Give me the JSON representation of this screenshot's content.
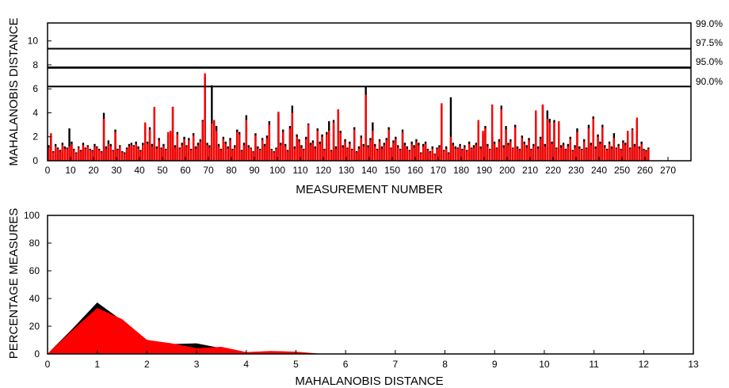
{
  "chart_data": [
    {
      "type": "bar",
      "xlabel": "MEASUREMENT NUMBER",
      "ylabel": "MAHALANOBIS DISTANCE",
      "xlim": [
        0,
        280
      ],
      "ylim": [
        0,
        11.5
      ],
      "xticks": [
        0,
        10,
        20,
        30,
        40,
        50,
        60,
        70,
        80,
        90,
        100,
        110,
        120,
        130,
        140,
        150,
        160,
        170,
        180,
        190,
        200,
        210,
        220,
        230,
        240,
        250,
        260,
        270
      ],
      "yticks": [
        0,
        2,
        4,
        6,
        8,
        10
      ],
      "threshold_lines": [
        {
          "label": "99.0%",
          "value": 9.35
        },
        {
          "label": "97.5%",
          "value": 7.8
        },
        {
          "label": "95.0%",
          "value": 7.75
        },
        {
          "label": "90.0%",
          "value": 6.2
        }
      ],
      "series": [
        {
          "color": "#000000",
          "values": [
            1.3,
            2.1,
            0.8,
            1.4,
            1.1,
            0.9,
            1.5,
            1.2,
            1.1,
            2.7,
            1.6,
            1.0,
            0.7,
            1.2,
            0.9,
            1.5,
            1.1,
            1.3,
            1.0,
            0.9,
            1.4,
            1.2,
            1.0,
            0.8,
            4.0,
            1.2,
            1.7,
            1.4,
            0.9,
            2.6,
            1.0,
            1.3,
            0.8,
            0.7,
            1.1,
            1.4,
            1.5,
            1.3,
            1.6,
            1.2,
            0.9,
            1.5,
            3.1,
            1.6,
            2.8,
            1.4,
            4.4,
            1.2,
            1.9,
            1.1,
            1.4,
            1.0,
            2.2,
            2.4,
            4.5,
            1.3,
            2.4,
            1.1,
            1.5,
            2.0,
            1.3,
            1.9,
            1.0,
            2.3,
            1.2,
            1.5,
            1.8,
            3.4,
            7.0,
            1.5,
            1.3,
            6.3,
            3.3,
            2.9,
            1.4,
            1.0,
            2.0,
            1.6,
            1.2,
            1.9,
            1.0,
            1.3,
            2.6,
            2.4,
            0.9,
            1.5,
            3.8,
            1.3,
            1.1,
            0.8,
            2.3,
            1.2,
            1.0,
            1.9,
            1.4,
            2.1,
            3.3,
            1.0,
            0.8,
            1.1,
            3.9,
            1.5,
            2.6,
            1.4,
            0.9,
            2.9,
            4.6,
            1.2,
            2.2,
            1.8,
            1.3,
            1.0,
            2.0,
            3.1,
            1.5,
            1.7,
            1.2,
            2.7,
            1.6,
            2.2,
            1.0,
            2.4,
            3.3,
            0.9,
            3.4,
            1.2,
            4.2,
            2.5,
            1.3,
            1.8,
            1.1,
            1.6,
            1.0,
            2.8,
            0.8,
            1.2,
            2.1,
            1.4,
            6.2,
            1.3,
            1.9,
            3.2,
            1.4,
            1.0,
            1.8,
            1.2,
            1.5,
            1.9,
            2.8,
            1.1,
            1.7,
            2.0,
            1.3,
            1.0,
            2.6,
            1.5,
            1.2,
            0.9,
            1.6,
            1.3,
            1.8,
            1.5,
            0.7,
            1.4,
            1.6,
            1.0,
            0.8,
            1.2,
            0.6,
            1.1,
            1.3,
            4.6,
            0.9,
            1.2,
            0.7,
            5.3,
            1.5,
            1.2,
            1.1,
            1.4,
            1.0,
            1.3,
            0.9,
            1.6,
            1.1,
            1.3,
            1.5,
            3.2,
            1.2,
            2.3,
            2.9,
            1.4,
            1.0,
            2.0,
            1.6,
            1.1,
            1.8,
            4.6,
            1.3,
            2.9,
            1.5,
            1.8,
            1.1,
            3.0,
            1.2,
            1.0,
            2.1,
            1.6,
            1.3,
            1.9,
            1.0,
            1.4,
            3.8,
            1.2,
            2.0,
            4.6,
            1.4,
            4.2,
            3.5,
            1.6,
            3.4,
            1.1,
            3.1,
            1.3,
            1.5,
            1.0,
            1.4,
            2.0,
            0.9,
            1.3,
            2.7,
            1.2,
            1.0,
            1.8,
            1.1,
            3.0,
            1.5,
            3.7,
            1.2,
            2.2,
            1.6,
            3.0,
            1.3,
            1.0,
            1.6,
            1.2,
            2.3,
            1.1,
            1.4,
            1.0,
            1.7,
            1.5,
            2.3,
            1.1,
            2.7,
            1.4,
            3.4,
            1.2,
            1.6,
            1.0,
            0.9,
            1.1
          ]
        },
        {
          "color": "#ff0000",
          "values": [
            1.1,
            2.3,
            0.7,
            1.2,
            1.0,
            0.8,
            1.3,
            1.0,
            1.0,
            1.2,
            1.4,
            0.9,
            0.6,
            1.1,
            0.8,
            1.3,
            1.0,
            1.2,
            0.9,
            0.8,
            1.2,
            1.1,
            0.9,
            0.7,
            3.5,
            1.0,
            1.4,
            1.2,
            0.8,
            2.4,
            0.9,
            1.2,
            0.7,
            0.6,
            1.0,
            1.2,
            1.3,
            1.2,
            1.4,
            1.0,
            0.8,
            1.3,
            3.2,
            1.4,
            2.6,
            1.2,
            4.5,
            1.0,
            1.7,
            1.0,
            1.2,
            0.9,
            2.4,
            2.5,
            4.5,
            1.1,
            2.2,
            1.0,
            1.3,
            1.8,
            1.2,
            1.7,
            0.9,
            2.1,
            1.0,
            1.3,
            1.6,
            3.3,
            7.3,
            1.3,
            1.1,
            3.1,
            3.4,
            2.5,
            1.2,
            0.9,
            1.8,
            1.4,
            1.0,
            1.7,
            0.9,
            1.1,
            2.4,
            2.2,
            0.8,
            1.3,
            3.4,
            1.1,
            1.0,
            0.7,
            2.1,
            1.0,
            0.9,
            1.7,
            1.2,
            1.9,
            3.0,
            0.9,
            0.7,
            1.0,
            4.1,
            1.3,
            2.4,
            1.2,
            0.8,
            2.7,
            4.0,
            1.0,
            2.0,
            1.6,
            1.1,
            0.9,
            1.8,
            3.0,
            1.3,
            1.5,
            1.0,
            2.5,
            1.4,
            2.0,
            0.9,
            2.2,
            2.5,
            0.8,
            3.2,
            1.0,
            4.3,
            2.3,
            1.1,
            1.6,
            1.0,
            1.4,
            0.9,
            2.6,
            0.7,
            1.0,
            1.9,
            1.2,
            5.5,
            1.1,
            1.7,
            2.5,
            1.2,
            0.9,
            1.6,
            1.0,
            1.3,
            1.7,
            2.6,
            1.0,
            1.5,
            1.8,
            1.1,
            0.9,
            2.4,
            1.3,
            1.0,
            0.8,
            1.4,
            1.1,
            1.6,
            1.3,
            0.6,
            1.2,
            1.4,
            0.9,
            0.7,
            1.0,
            0.5,
            1.0,
            1.1,
            4.8,
            0.8,
            1.0,
            0.6,
            2.0,
            1.3,
            1.0,
            1.0,
            1.2,
            0.9,
            1.1,
            0.8,
            1.4,
            1.0,
            1.1,
            1.3,
            3.4,
            1.0,
            2.5,
            2.7,
            1.2,
            0.9,
            4.7,
            1.4,
            1.0,
            1.6,
            4.3,
            1.1,
            2.6,
            1.3,
            1.6,
            1.0,
            2.8,
            1.0,
            0.9,
            1.9,
            1.4,
            1.1,
            1.7,
            0.9,
            1.2,
            4.2,
            1.0,
            1.8,
            4.7,
            1.2,
            3.5,
            3.2,
            1.4,
            3.2,
            1.0,
            3.3,
            1.1,
            1.3,
            0.9,
            1.2,
            1.8,
            0.8,
            1.1,
            2.4,
            1.0,
            0.9,
            1.6,
            1.0,
            2.7,
            1.3,
            3.5,
            1.0,
            2.0,
            1.4,
            2.8,
            1.1,
            0.9,
            1.4,
            1.0,
            1.9,
            1.0,
            1.2,
            0.9,
            1.5,
            1.3,
            2.5,
            1.0,
            2.6,
            1.2,
            3.6,
            1.0,
            1.4,
            0.9,
            0.8,
            1.0
          ]
        }
      ]
    },
    {
      "type": "area",
      "xlabel": "MAHALANOBIS DISTANCE",
      "ylabel": "PERCENTAGE MEASURES",
      "xlim": [
        0,
        13
      ],
      "ylim": [
        0,
        100
      ],
      "xticks": [
        0,
        1,
        2,
        3,
        4,
        5,
        6,
        7,
        8,
        9,
        10,
        11,
        12,
        13
      ],
      "yticks": [
        0,
        20,
        40,
        60,
        80,
        100
      ],
      "series": [
        {
          "color": "#000000",
          "points": [
            [
              0,
              0
            ],
            [
              0.5,
              18
            ],
            [
              1,
              37
            ],
            [
              1.5,
              24
            ],
            [
              2,
              10
            ],
            [
              2.5,
              7
            ],
            [
              3,
              7.5
            ],
            [
              3.5,
              4
            ],
            [
              4,
              1
            ],
            [
              4.5,
              1.5
            ],
            [
              5,
              1
            ],
            [
              5.5,
              0
            ],
            [
              6,
              0
            ],
            [
              13,
              0
            ]
          ]
        },
        {
          "color": "#ff0000",
          "points": [
            [
              0,
              0
            ],
            [
              0.5,
              17
            ],
            [
              1,
              33
            ],
            [
              1.5,
              25
            ],
            [
              2,
              10
            ],
            [
              2.5,
              7.5
            ],
            [
              3,
              4
            ],
            [
              3.5,
              5
            ],
            [
              4,
              1.2
            ],
            [
              4.5,
              2
            ],
            [
              5,
              1.5
            ],
            [
              5.5,
              0
            ],
            [
              6,
              0
            ],
            [
              13,
              0
            ]
          ]
        }
      ]
    }
  ]
}
